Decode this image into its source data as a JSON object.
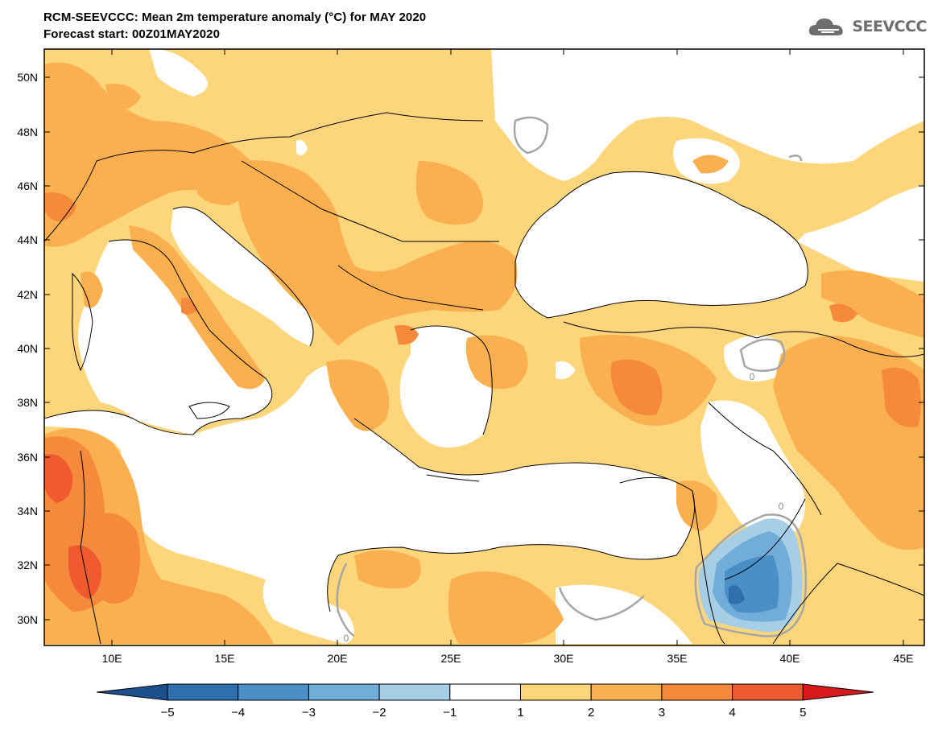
{
  "header": {
    "title": "RCM-SEEVCCC: Mean 2m temperature anomaly (°C) for MAY 2020",
    "subtitle": "Forecast start: 00Z01MAY2020"
  },
  "logo": {
    "text": "SEEVCCC",
    "icon": "cloud-icon"
  },
  "axes": {
    "lat_labels": [
      "50N",
      "48N",
      "46N",
      "44N",
      "42N",
      "40N",
      "38N",
      "36N",
      "34N",
      "32N",
      "30N"
    ],
    "lon_labels": [
      "10E",
      "15E",
      "20E",
      "25E",
      "30E",
      "35E",
      "40E",
      "45E"
    ]
  },
  "contour_label": "0",
  "colorbar": {
    "ticks": [
      "−5",
      "−4",
      "−3",
      "−2",
      "−1",
      "1",
      "2",
      "3",
      "4",
      "5"
    ],
    "colors": [
      "#1c4f8e",
      "#2f6fae",
      "#4a8fc6",
      "#72acd8",
      "#a6cee6",
      "#ffffff",
      "#fdd57a",
      "#fbb04f",
      "#f58a3c",
      "#ef5a2e",
      "#d7191c"
    ]
  },
  "palette": {
    "land_outline": "#000000",
    "zero_contour": "#a6a6a6",
    "sea": "#ffffff"
  }
}
